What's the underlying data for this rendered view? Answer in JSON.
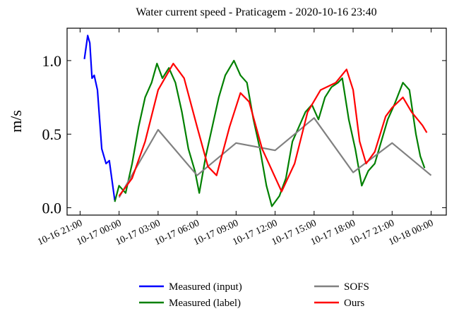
{
  "chart_data": {
    "type": "line",
    "title": "Water current speed - Praticagem - 2020-10-16 23:40",
    "y_label": "m/s",
    "xlim": [
      "10-16 20:00",
      "10-18 01:10"
    ],
    "xticks": [
      "10-16 21:00",
      "10-17 00:00",
      "10-17 03:00",
      "10-17 06:00",
      "10-17 09:00",
      "10-17 12:00",
      "10-17 15:00",
      "10-17 18:00",
      "10-17 21:00",
      "10-18 00:00"
    ],
    "ylim": [
      -0.05,
      1.22
    ],
    "yticks": [
      {
        "value": 0,
        "label": "0.0"
      },
      0.5,
      {
        "value": 1,
        "label": "1.0"
      }
    ],
    "legend": "lower center",
    "series": [
      {
        "name": "Measured (input)",
        "color": "#0000ff",
        "x": [
          "10-16 21:20",
          "10-16 21:35",
          "10-16 21:45",
          "10-16 21:55",
          "10-16 22:05",
          "10-16 22:20",
          "10-16 22:40",
          "10-16 23:00",
          "10-16 23:15",
          "10-16 23:40"
        ],
        "values": [
          1.01,
          1.17,
          1.12,
          0.88,
          0.9,
          0.8,
          0.4,
          0.3,
          0.32,
          0.05
        ]
      },
      {
        "name": "Measured (label)",
        "color": "#008000",
        "x": [
          "10-16 23:40",
          "10-17 00:00",
          "10-17 00:30",
          "10-17 01:00",
          "10-17 01:30",
          "10-17 02:00",
          "10-17 02:30",
          "10-17 02:55",
          "10-17 03:20",
          "10-17 03:50",
          "10-17 04:20",
          "10-17 04:50",
          "10-17 05:20",
          "10-17 05:50",
          "10-17 06:10",
          "10-17 06:40",
          "10-17 07:10",
          "10-17 07:40",
          "10-17 08:10",
          "10-17 08:50",
          "10-17 09:20",
          "10-17 09:50",
          "10-17 10:20",
          "10-17 10:50",
          "10-17 11:20",
          "10-17 11:45",
          "10-17 12:20",
          "10-17 12:50",
          "10-17 13:20",
          "10-17 13:50",
          "10-17 14:20",
          "10-17 14:50",
          "10-17 15:20",
          "10-17 15:50",
          "10-17 16:20",
          "10-17 16:50",
          "10-17 17:10",
          "10-17 17:40",
          "10-17 18:10",
          "10-17 18:40",
          "10-17 19:10",
          "10-17 19:40",
          "10-17 20:10",
          "10-17 20:40",
          "10-17 21:10",
          "10-17 21:50",
          "10-17 22:20",
          "10-17 22:50",
          "10-17 23:10",
          "10-17 23:30"
        ],
        "values": [
          0.04,
          0.15,
          0.1,
          0.3,
          0.55,
          0.75,
          0.85,
          0.98,
          0.88,
          0.95,
          0.85,
          0.65,
          0.4,
          0.25,
          0.1,
          0.35,
          0.55,
          0.75,
          0.9,
          1.0,
          0.9,
          0.85,
          0.6,
          0.4,
          0.15,
          0.01,
          0.08,
          0.2,
          0.45,
          0.55,
          0.65,
          0.7,
          0.6,
          0.75,
          0.82,
          0.85,
          0.88,
          0.6,
          0.4,
          0.15,
          0.25,
          0.3,
          0.45,
          0.6,
          0.7,
          0.85,
          0.8,
          0.5,
          0.35,
          0.27
        ]
      },
      {
        "name": "SOFS",
        "color": "#808080",
        "x": [
          "10-17 00:00",
          "10-17 03:00",
          "10-17 06:00",
          "10-17 09:00",
          "10-17 12:00",
          "10-17 15:00",
          "10-17 18:00",
          "10-17 21:00",
          "10-18 00:00"
        ],
        "values": [
          0.07,
          0.53,
          0.22,
          0.44,
          0.39,
          0.61,
          0.24,
          0.44,
          0.22
        ]
      },
      {
        "name": "Ours",
        "color": "#ff0000",
        "x": [
          "10-17 00:00",
          "10-17 01:00",
          "10-17 02:00",
          "10-17 03:00",
          "10-17 04:10",
          "10-17 05:00",
          "10-17 06:00",
          "10-17 06:50",
          "10-17 07:30",
          "10-17 08:30",
          "10-17 09:20",
          "10-17 10:00",
          "10-17 11:00",
          "10-17 12:30",
          "10-17 13:30",
          "10-17 14:30",
          "10-17 15:30",
          "10-17 16:40",
          "10-17 17:30",
          "10-17 18:00",
          "10-17 18:30",
          "10-17 19:00",
          "10-17 19:40",
          "10-17 20:30",
          "10-17 21:00",
          "10-17 21:50",
          "10-17 22:30",
          "10-17 23:20",
          "10-17 23:40"
        ],
        "values": [
          0.08,
          0.2,
          0.45,
          0.8,
          0.98,
          0.88,
          0.55,
          0.28,
          0.22,
          0.55,
          0.78,
          0.72,
          0.4,
          0.11,
          0.3,
          0.65,
          0.8,
          0.85,
          0.94,
          0.8,
          0.45,
          0.3,
          0.38,
          0.62,
          0.68,
          0.75,
          0.65,
          0.56,
          0.51
        ]
      }
    ]
  }
}
